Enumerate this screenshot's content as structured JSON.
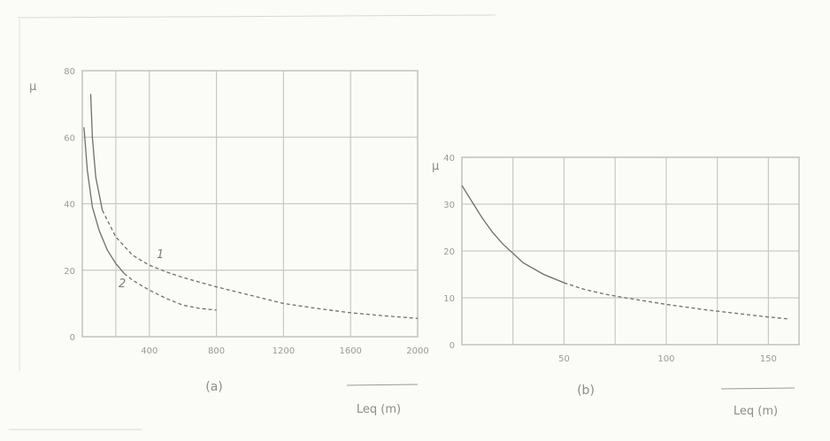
{
  "chart_data": [
    {
      "type": "line",
      "caption": "(a)",
      "ylabel": "μ",
      "xlabel": "Leq (m)",
      "xlim": [
        0,
        2000
      ],
      "ylim": [
        0,
        80
      ],
      "x_ticks": [
        "400",
        "800",
        "1200",
        "1600",
        "2000"
      ],
      "y_ticks": [
        "0",
        "20",
        "40",
        "60",
        "80"
      ],
      "series": [
        {
          "name": "1",
          "points": [
            [
              50,
              73
            ],
            [
              60,
              60
            ],
            [
              80,
              48
            ],
            [
              120,
              38
            ],
            [
              200,
              30
            ],
            [
              300,
              24.5
            ],
            [
              400,
              21.5
            ],
            [
              500,
              19.5
            ],
            [
              600,
              17.8
            ],
            [
              800,
              15
            ],
            [
              1000,
              12.5
            ],
            [
              1200,
              10
            ],
            [
              1400,
              8.5
            ],
            [
              1600,
              7.2
            ],
            [
              1800,
              6.3
            ],
            [
              2000,
              5.5
            ]
          ]
        },
        {
          "name": "2",
          "points": [
            [
              10,
              63
            ],
            [
              30,
              50
            ],
            [
              60,
              39
            ],
            [
              100,
              32
            ],
            [
              150,
              26
            ],
            [
              200,
              22
            ],
            [
              250,
              19
            ],
            [
              300,
              17
            ],
            [
              400,
              14
            ],
            [
              500,
              11.5
            ],
            [
              600,
              9.5
            ],
            [
              700,
              8.5
            ],
            [
              800,
              8
            ]
          ]
        }
      ]
    },
    {
      "type": "line",
      "caption": "(b)",
      "ylabel": "μ",
      "xlabel": "Leq (m)",
      "xlim": [
        0,
        165
      ],
      "ylim": [
        0,
        40
      ],
      "x_ticks": [
        "50",
        "100",
        "150"
      ],
      "y_ticks": [
        "0",
        "10",
        "20",
        "30",
        "40"
      ],
      "series": [
        {
          "name": "",
          "points": [
            [
              0,
              34
            ],
            [
              5,
              30.5
            ],
            [
              10,
              27
            ],
            [
              15,
              24
            ],
            [
              20,
              21.5
            ],
            [
              30,
              17.5
            ],
            [
              40,
              15
            ],
            [
              50,
              13.2
            ],
            [
              60,
              11.8
            ],
            [
              70,
              10.8
            ],
            [
              80,
              10
            ],
            [
              90,
              9.3
            ],
            [
              100,
              8.6
            ],
            [
              110,
              8
            ],
            [
              120,
              7.4
            ],
            [
              130,
              6.9
            ],
            [
              140,
              6.4
            ],
            [
              150,
              5.9
            ],
            [
              160,
              5.5
            ]
          ]
        }
      ]
    }
  ]
}
